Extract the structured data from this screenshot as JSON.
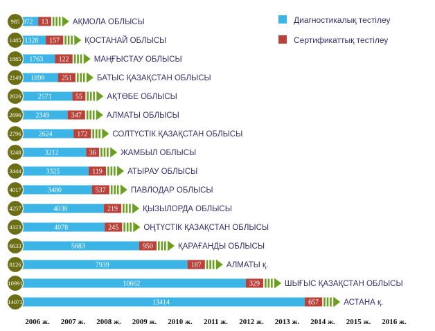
{
  "chart_data": {
    "type": "bar",
    "orientation": "horizontal",
    "stacked": true,
    "legend": "top-right",
    "grid": false,
    "xlim": [
      0,
      14100
    ],
    "colors": {
      "diagnostic": "#3cb4e6",
      "certification": "#b8413a",
      "badge": "#6b6e14",
      "arrow": "#6aa01e"
    },
    "series": [
      {
        "name": "Диагностикалық тестілеу",
        "color": "#3cb4e6"
      },
      {
        "name": "Сертификаттық тестілеу",
        "color": "#b8413a"
      }
    ],
    "x_ticks": [
      "2006 ж.",
      "2007 ж.",
      "2008 ж.",
      "2009 ж.",
      "2010 ж.",
      "2011 ж.",
      "2012 ж.",
      "2013 ж.",
      "2014 ж.",
      "2015 ж.",
      "2016 ж."
    ],
    "rows": [
      {
        "total": 985,
        "diagnostic": 972,
        "certification": 13,
        "region": "АҚМОЛА ОБЛЫСЫ"
      },
      {
        "total": 1485,
        "diagnostic": 1328,
        "certification": 157,
        "region": "ҚОСТАНАЙ ОБЛЫСЫ"
      },
      {
        "total": 1885,
        "diagnostic": 1763,
        "certification": 122,
        "region": "МАҢҒЫСТАУ ОБЛЫСЫ"
      },
      {
        "total": 2149,
        "diagnostic": 1898,
        "certification": 251,
        "region": "БАТЫС ҚАЗАҚСТАН ОБЛЫСЫ"
      },
      {
        "total": 2626,
        "diagnostic": 2571,
        "certification": 55,
        "region": "АҚТӨБЕ ОБЛЫСЫ"
      },
      {
        "total": 2696,
        "diagnostic": 2349,
        "certification": 347,
        "region": "АЛМАТЫ ОБЛЫСЫ"
      },
      {
        "total": 2796,
        "diagnostic": 2624,
        "certification": 172,
        "region": "СОЛТҮСТІК ҚАЗАҚСТАН ОБЛЫСЫ"
      },
      {
        "total": 3248,
        "diagnostic": 3212,
        "certification": 36,
        "region": "ЖАМБЫЛ ОБЛЫСЫ"
      },
      {
        "total": 3444,
        "diagnostic": 3325,
        "certification": 119,
        "region": "АТЫРАУ ОБЛЫСЫ"
      },
      {
        "total": 4017,
        "diagnostic": 3480,
        "certification": 537,
        "region": "ПАВЛОДАР ОБЛЫСЫ"
      },
      {
        "total": 4257,
        "diagnostic": 4038,
        "certification": 219,
        "region": "ҚЫЗЫЛОРДА ОБЛЫСЫ"
      },
      {
        "total": 4323,
        "diagnostic": 4078,
        "certification": 245,
        "region": "ОҢТҮСТІК ҚАЗАҚСТАН ОБЛЫСЫ"
      },
      {
        "total": 6633,
        "diagnostic": 5683,
        "certification": 950,
        "region": "ҚАРАҒАНДЫ ОБЛЫСЫ"
      },
      {
        "total": 8126,
        "diagnostic": 7939,
        "certification": 187,
        "region": "АЛМАТЫ қ."
      },
      {
        "total": 10991,
        "diagnostic": 10662,
        "certification": 329,
        "region": "ШЫҒЫС ҚАЗАҚСТАН ОБЛЫСЫ"
      },
      {
        "total": 14071,
        "diagnostic": 13414,
        "certification": 657,
        "region": "АСТАНА қ."
      }
    ]
  }
}
